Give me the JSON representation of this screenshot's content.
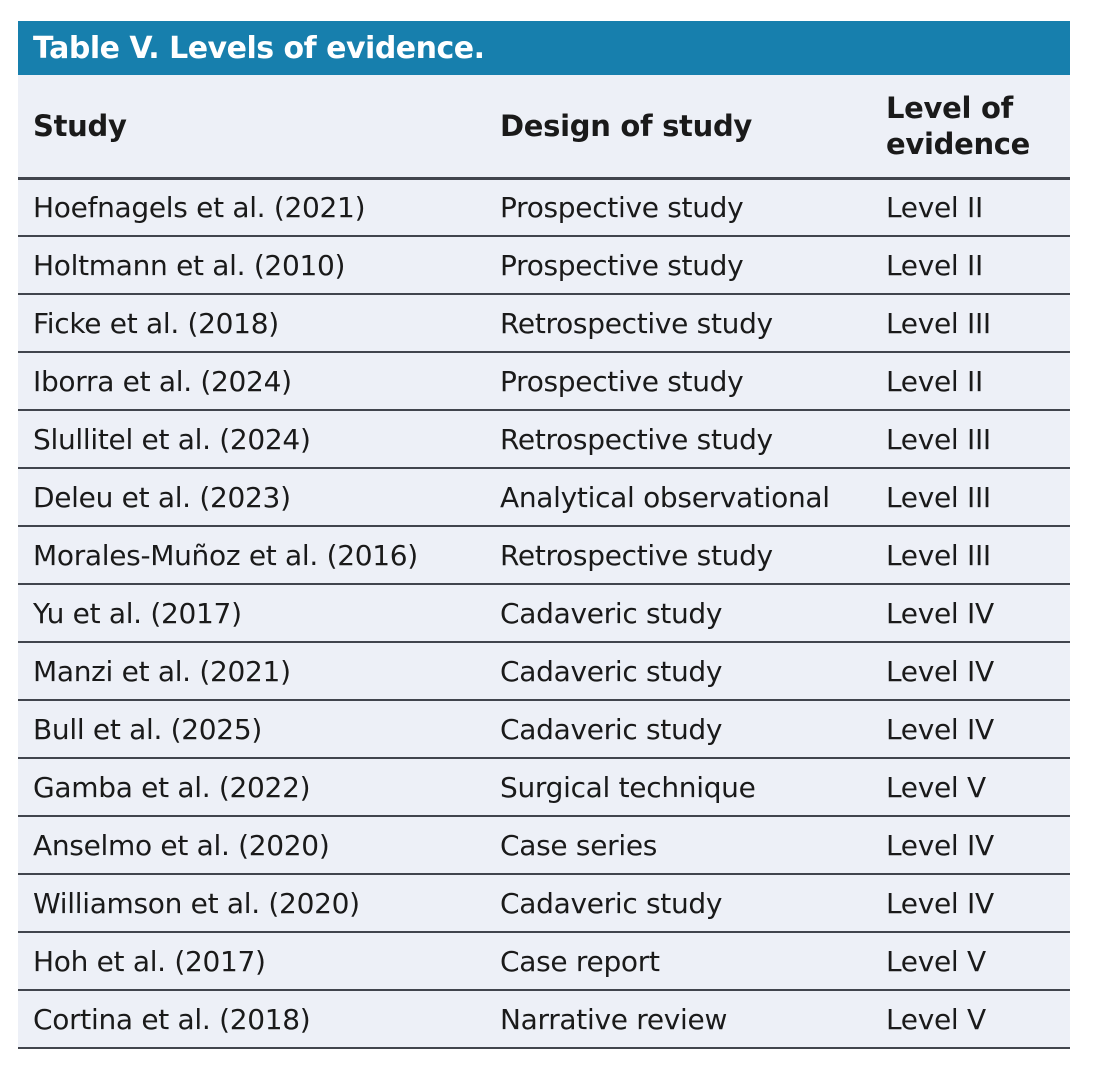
{
  "table": {
    "title": "Table V. Levels of evidence.",
    "columns": [
      "Study",
      "Design of study",
      "Level of evidence"
    ],
    "rows": [
      [
        "Hoefnagels et al. (2021)",
        "Prospective study",
        "Level II"
      ],
      [
        "Holtmann et al. (2010)",
        "Prospective study",
        "Level II"
      ],
      [
        "Ficke et al. (2018)",
        "Retrospective study",
        "Level III"
      ],
      [
        "Iborra et al. (2024)",
        "Prospective study",
        "Level II"
      ],
      [
        "Slullitel et al. (2024)",
        "Retrospective study",
        "Level III"
      ],
      [
        "Deleu et al. (2023)",
        "Analytical observational",
        "Level III"
      ],
      [
        "Morales-Muñoz et al. (2016)",
        "Retrospective study",
        "Level III"
      ],
      [
        "Yu et al. (2017)",
        "Cadaveric study",
        "Level IV"
      ],
      [
        "Manzi et al. (2021)",
        "Cadaveric study",
        "Level IV"
      ],
      [
        "Bull et al. (2025)",
        "Cadaveric study",
        "Level IV"
      ],
      [
        "Gamba et al. (2022)",
        "Surgical technique",
        "Level V"
      ],
      [
        "Anselmo et al. (2020)",
        "Case series",
        "Level IV"
      ],
      [
        "Williamson et al. (2020)",
        "Cadaveric study",
        "Level IV"
      ],
      [
        "Hoh et al. (2017)",
        "Case report",
        "Level V"
      ],
      [
        "Cortina et al. (2018)",
        "Narrative review",
        "Level V"
      ]
    ],
    "colors": {
      "title_bar_bg": "#177fad",
      "title_text": "#ffffff",
      "row_bg": "#edf0f7",
      "border": "#41454d",
      "text": "#1a1a1a"
    }
  }
}
